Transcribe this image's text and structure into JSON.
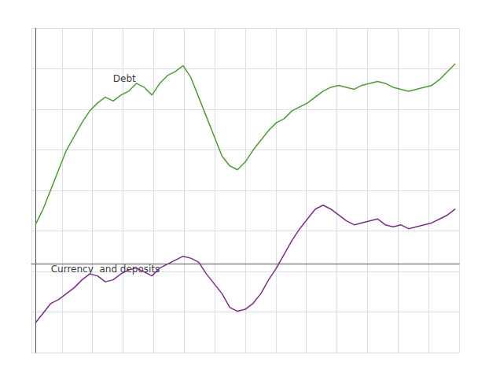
{
  "chart_data": {
    "type": "line",
    "x": [
      0,
      1,
      2,
      3,
      4,
      5,
      6,
      7,
      8,
      9,
      10,
      11,
      12,
      13,
      14,
      15,
      16,
      17,
      18,
      19,
      20,
      21,
      22,
      23,
      24,
      25,
      26,
      27,
      28,
      29,
      30,
      31,
      32,
      33,
      34,
      35,
      36,
      37,
      38,
      39,
      40,
      41,
      42,
      43,
      44,
      45,
      46,
      47,
      48,
      49,
      50,
      51,
      52,
      53,
      54
    ],
    "series": [
      {
        "color": "#4d9e2f",
        "values": [
          2.0,
          2.8,
          3.8,
          4.8,
          5.8,
          6.5,
          7.2,
          7.8,
          8.2,
          8.5,
          8.3,
          8.6,
          8.8,
          9.2,
          9.0,
          8.6,
          9.2,
          9.6,
          9.8,
          10.1,
          9.5,
          8.5,
          7.5,
          6.5,
          5.5,
          5.0,
          4.8,
          5.2,
          5.8,
          6.3,
          6.8,
          7.2,
          7.4,
          7.8,
          8.0,
          8.2,
          8.5,
          8.8,
          9.0,
          9.1,
          9.0,
          8.9,
          9.1,
          9.2,
          9.3,
          9.2,
          9.0,
          8.9,
          8.8,
          8.9,
          9.0,
          9.1,
          9.4,
          9.8,
          10.2
        ]
      },
      {
        "color": "#7b2d8b",
        "values": [
          -3.0,
          -2.5,
          -2.0,
          -1.8,
          -1.5,
          -1.2,
          -0.8,
          -0.5,
          -0.6,
          -0.9,
          -0.8,
          -0.5,
          -0.3,
          -0.2,
          -0.4,
          -0.6,
          -0.2,
          0.0,
          0.2,
          0.4,
          0.3,
          0.1,
          -0.5,
          -1.0,
          -1.5,
          -2.2,
          -2.4,
          -2.3,
          -2.0,
          -1.5,
          -0.8,
          -0.2,
          0.5,
          1.2,
          1.8,
          2.3,
          2.8,
          3.0,
          2.8,
          2.5,
          2.2,
          2.0,
          2.1,
          2.2,
          2.3,
          2.0,
          1.9,
          2.0,
          1.8,
          1.9,
          2.0,
          2.1,
          2.3,
          2.5,
          2.8
        ]
      }
    ],
    "annotations": [
      {
        "text": "Debt",
        "x": 10,
        "y": 9.15
      },
      {
        "text": "Currency  and deposits",
        "x": 2,
        "y": -0.55
      }
    ],
    "xlim": [
      -0.5,
      54.5
    ],
    "xticks": [
      -0.5,
      3.4285714285714284,
      7.357142857142857,
      11.285714285714286,
      15.214285714285714,
      19.142857142857142,
      23.071428571428573,
      27.0,
      30.928571428571427,
      34.857142857142854,
      38.785714285714285,
      42.714285714285715,
      46.642857142857146,
      50.57142857142857,
      54.5
    ],
    "ylim": [
      -4.5,
      12.0
    ],
    "yticks": [
      -4.5,
      -2.4375,
      -0.375,
      1.6875,
      3.75,
      5.8125,
      7.875,
      9.9375,
      12.0
    ],
    "grid": true,
    "tick_labels": false
  }
}
